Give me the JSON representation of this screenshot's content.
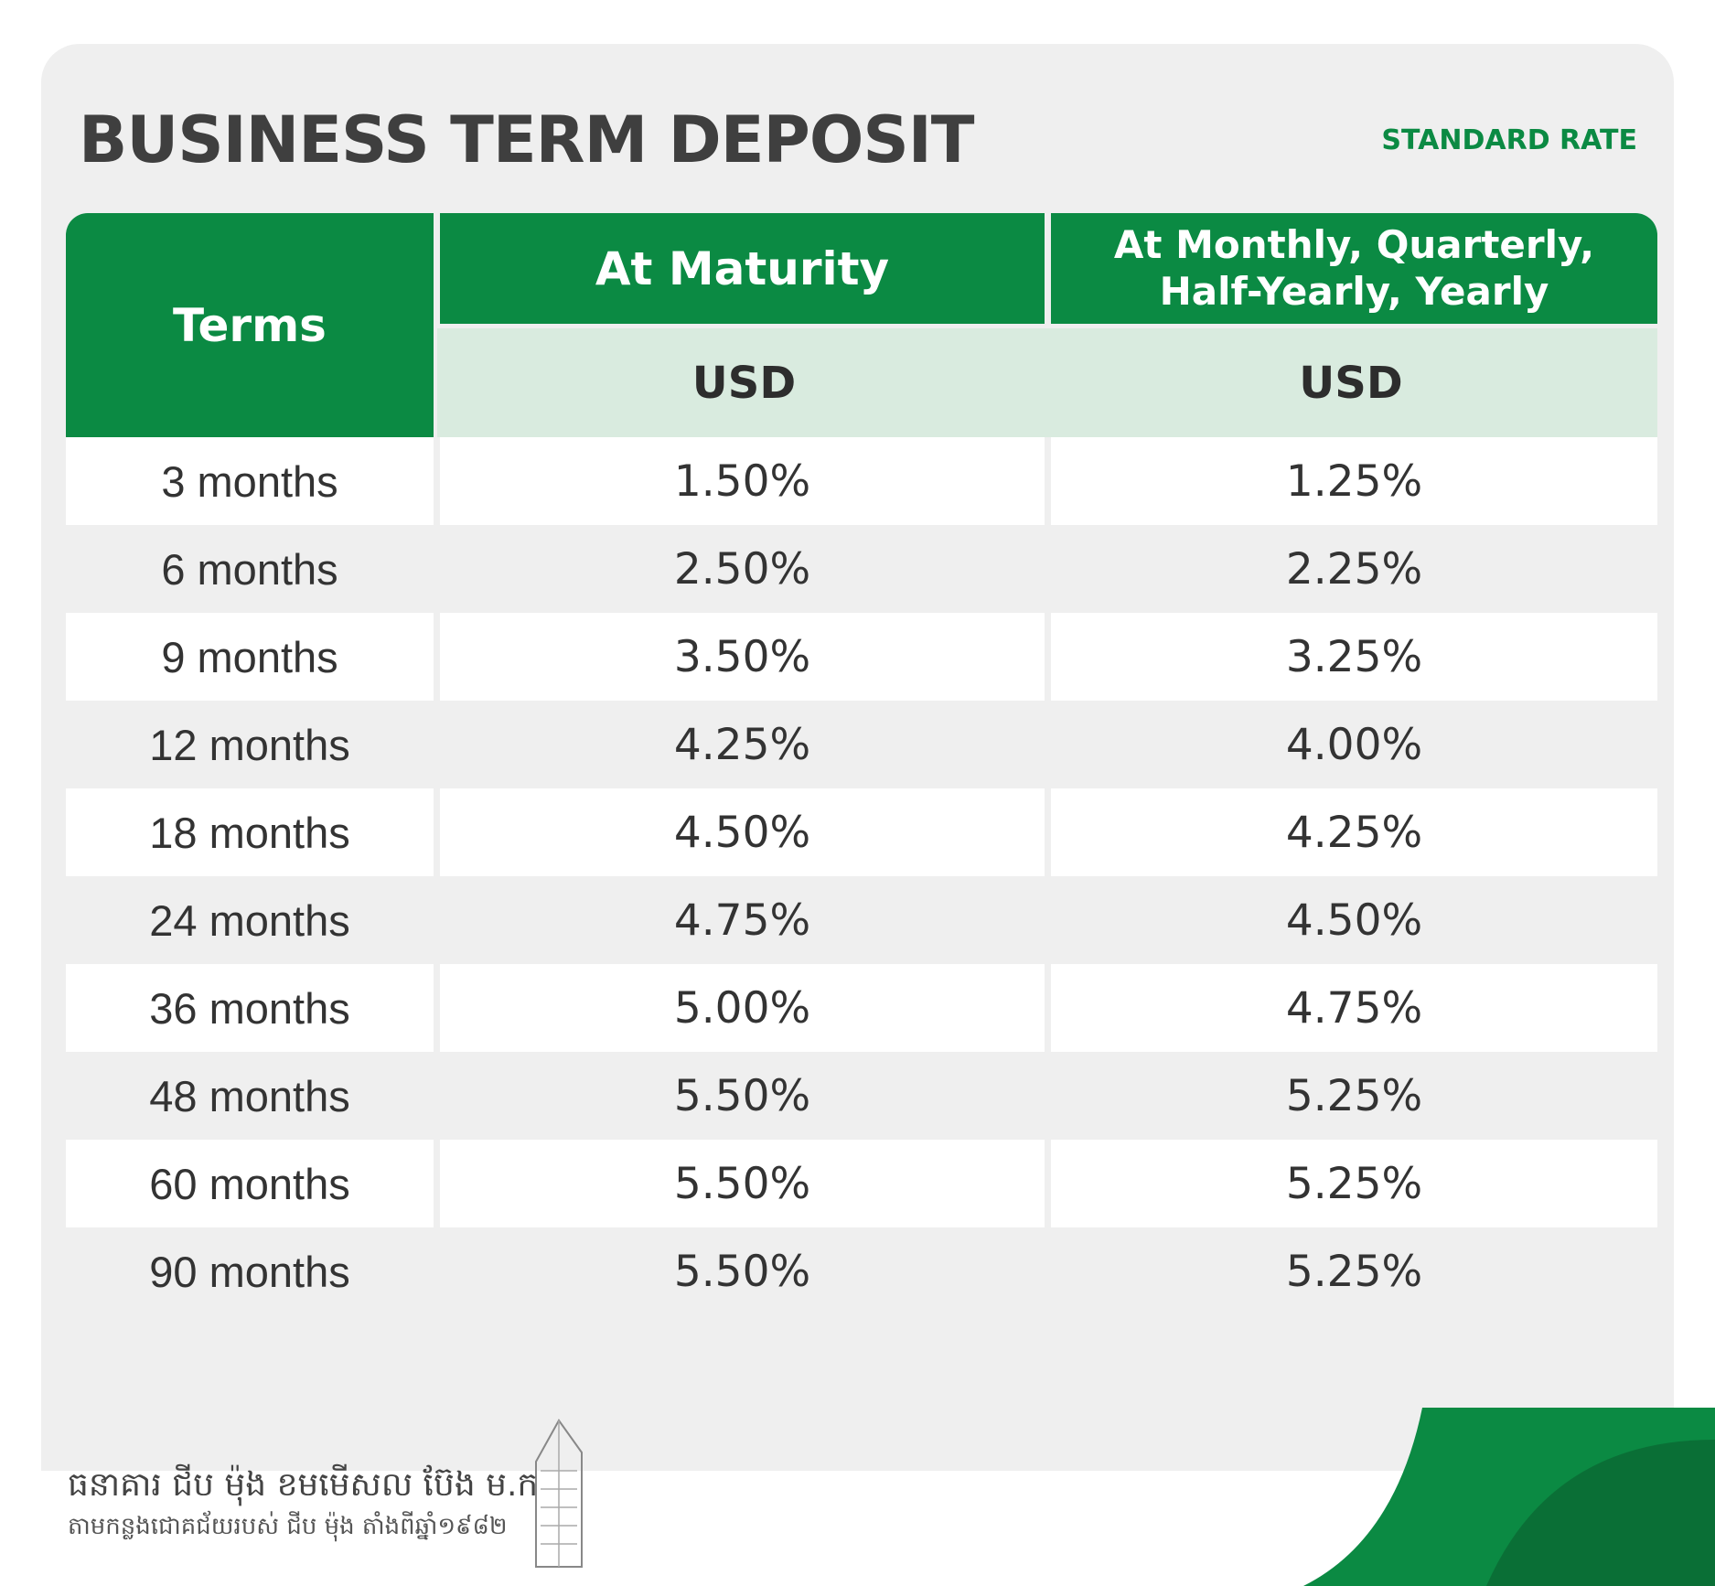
{
  "header": {
    "title": "BUSINESS TERM DEPOSIT",
    "subtitle": "STANDARD RATE"
  },
  "table": {
    "columns": [
      "Terms",
      "At Maturity",
      "At Monthly, Quarterly, Half-Yearly, Yearly"
    ],
    "currency": [
      "USD",
      "USD"
    ],
    "rows": [
      [
        "3 months",
        "1.50%",
        "1.25%"
      ],
      [
        "6 months",
        "2.50%",
        "2.25%"
      ],
      [
        "9 months",
        "3.50%",
        "3.25%"
      ],
      [
        "12 months",
        "4.25%",
        "4.00%"
      ],
      [
        "18 months",
        "4.50%",
        "4.25%"
      ],
      [
        "24 months",
        "4.75%",
        "4.50%"
      ],
      [
        "36 months",
        "5.00%",
        "4.75%"
      ],
      [
        "48 months",
        "5.50%",
        "5.25%"
      ],
      [
        "60 months",
        "5.50%",
        "5.25%"
      ],
      [
        "90 months",
        "5.50%",
        "5.25%"
      ]
    ]
  },
  "footer": {
    "bank_name": "ធនាគារ ជីប ម៉ុង ខមមើសល ប៊ែង ម.ក",
    "tagline": "តាមកន្លងជោគជ័យរបស់ ជីប ម៉ុង តាំងពីឆ្នាំ១៩៨២"
  }
}
